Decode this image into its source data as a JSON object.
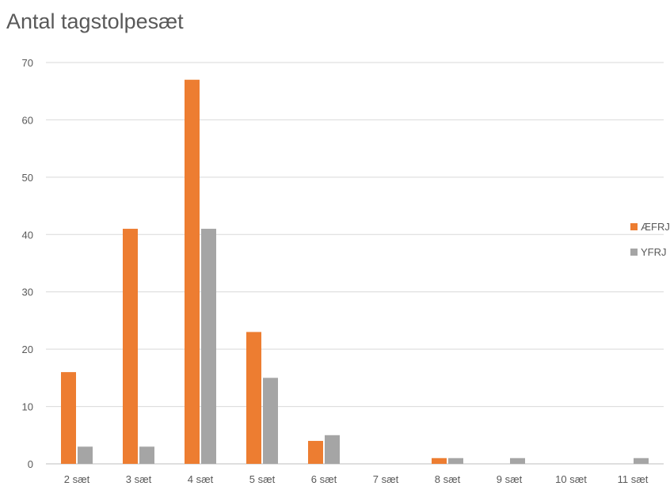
{
  "chart_data": {
    "type": "bar",
    "title": "Antal tagstolpesæt",
    "xlabel": "",
    "ylabel": "",
    "categories": [
      "2 sæt",
      "3 sæt",
      "4 sæt",
      "5 sæt",
      "6 sæt",
      "7 sæt",
      "8 sæt",
      "9 sæt",
      "10 sæt",
      "11 sæt"
    ],
    "series": [
      {
        "name": "ÆFRJ",
        "color": "#ED7D31",
        "values": [
          16,
          41,
          67,
          23,
          4,
          0,
          1,
          0,
          0,
          0
        ]
      },
      {
        "name": "YFRJ",
        "color": "#A5A5A5",
        "values": [
          3,
          3,
          41,
          15,
          5,
          0,
          1,
          1,
          0,
          1
        ]
      }
    ],
    "ylim": [
      0,
      70
    ],
    "yticks": [
      0,
      10,
      20,
      30,
      40,
      50,
      60,
      70
    ],
    "grid": true,
    "legend_position": "right"
  }
}
